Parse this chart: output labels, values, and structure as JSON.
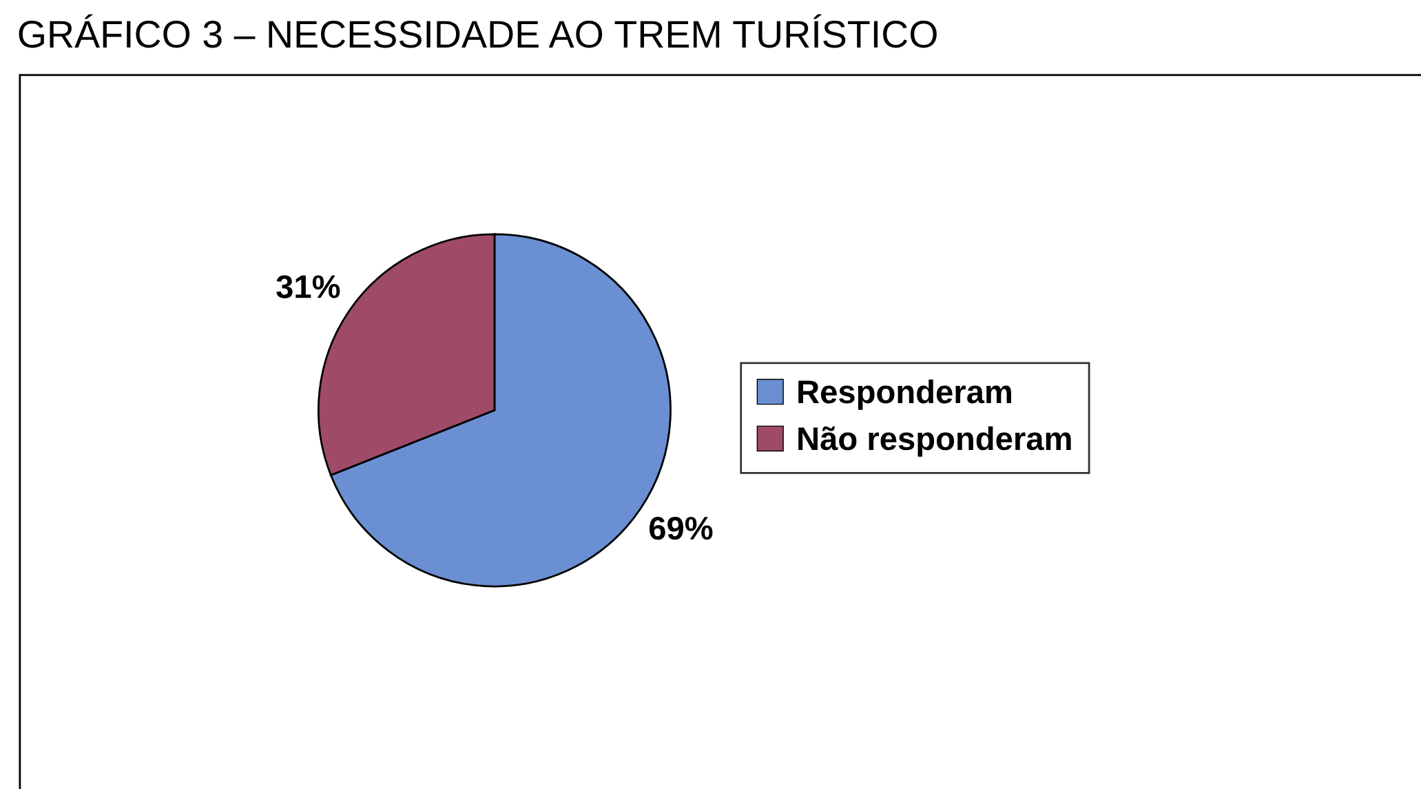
{
  "chart_data": {
    "type": "pie",
    "title": "GRÁFICO 3 – NECESSIDADE AO TREM TURÍSTICO",
    "categories": [
      "Responderam",
      "Não responderam"
    ],
    "values": [
      69,
      31
    ],
    "colors": [
      "#6a8fd2",
      "#a04a6a"
    ],
    "value_labels": [
      "69%",
      "31%"
    ],
    "legend": "right"
  }
}
